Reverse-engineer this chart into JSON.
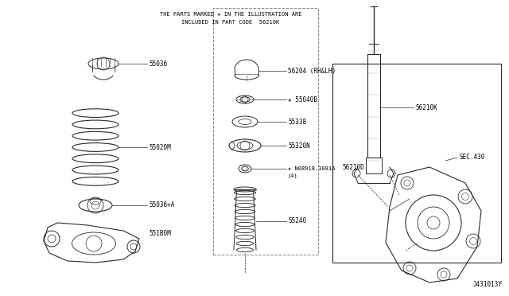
{
  "bg_color": "#ffffff",
  "line_color": "#2a2a2a",
  "text_color": "#000000",
  "fig_width": 6.4,
  "fig_height": 3.72,
  "dpi": 100,
  "header_line1": "THE PARTS MARKED ★ IN THE ILLUSTRATION ARE",
  "header_line2": "INCLUDED IN PART CODE  56210K",
  "footer": "J431013Y",
  "small_font": 5.0,
  "label_font": 5.5
}
